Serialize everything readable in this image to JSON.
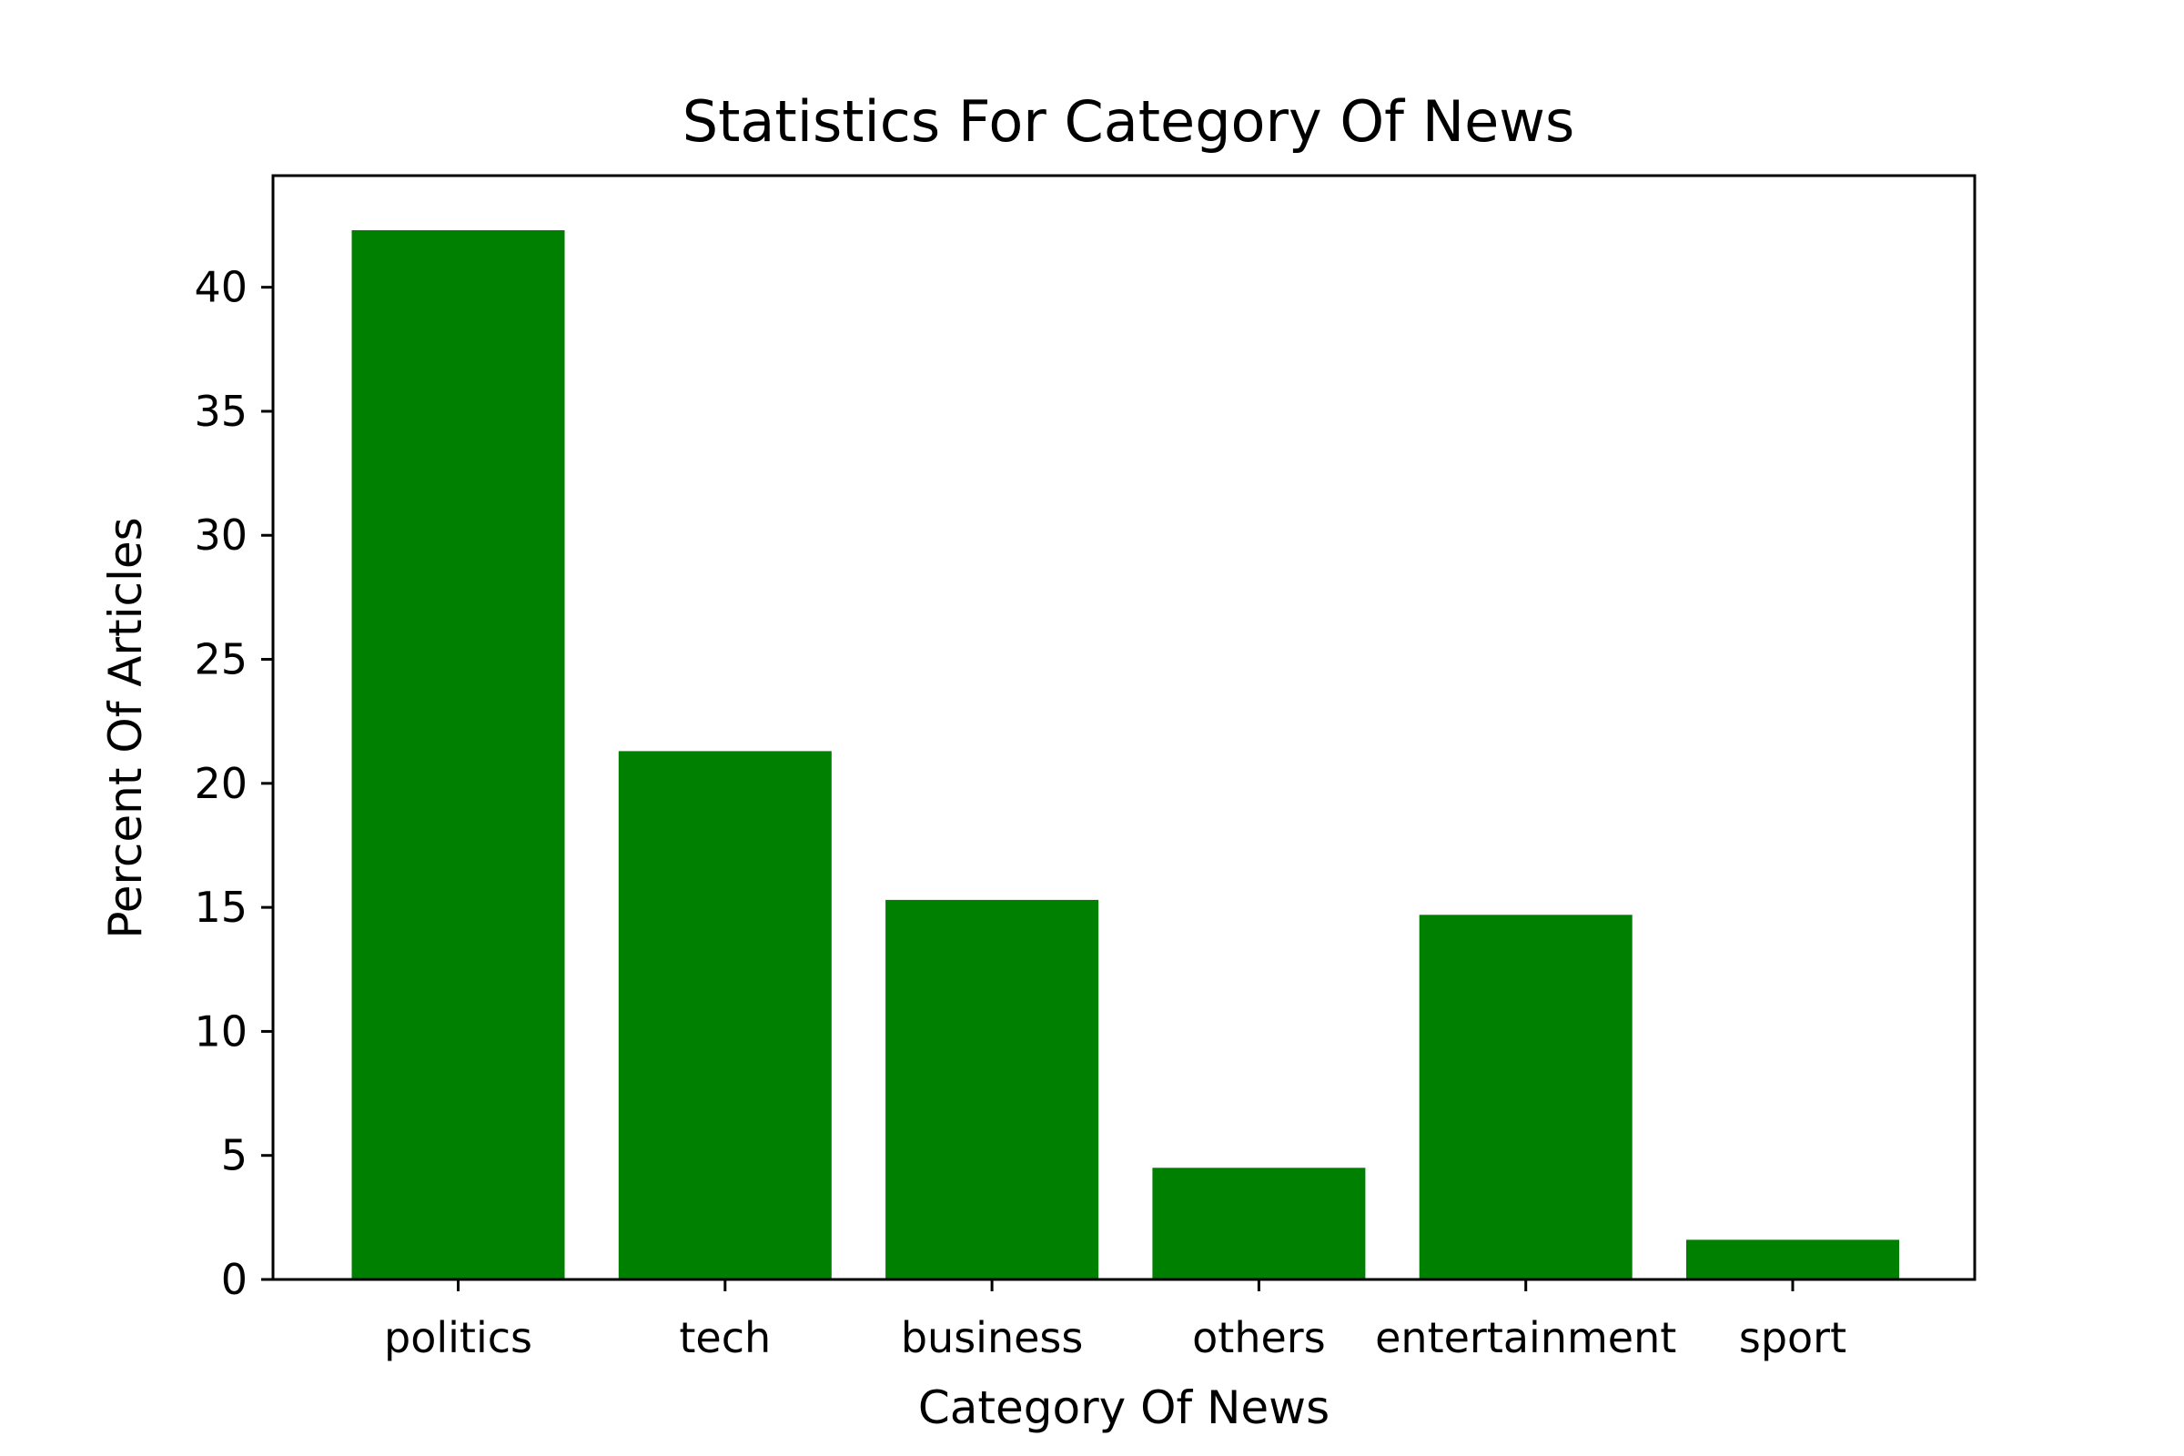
{
  "chart_data": {
    "type": "bar",
    "title": "Statistics For Category Of News",
    "xlabel": "Category Of News",
    "ylabel": "Percent Of Articles",
    "categories": [
      "politics",
      "tech",
      "business",
      "others",
      "entertainment",
      "sport"
    ],
    "values": [
      42.3,
      21.3,
      15.3,
      4.5,
      14.7,
      1.6
    ],
    "ylim": [
      0,
      44.5
    ],
    "yticks": [
      0,
      5,
      10,
      15,
      20,
      25,
      30,
      35,
      40
    ],
    "grid": false,
    "legend": "none",
    "colors": {
      "bar": "#008000",
      "axis": "#000000",
      "background": "#ffffff"
    }
  }
}
